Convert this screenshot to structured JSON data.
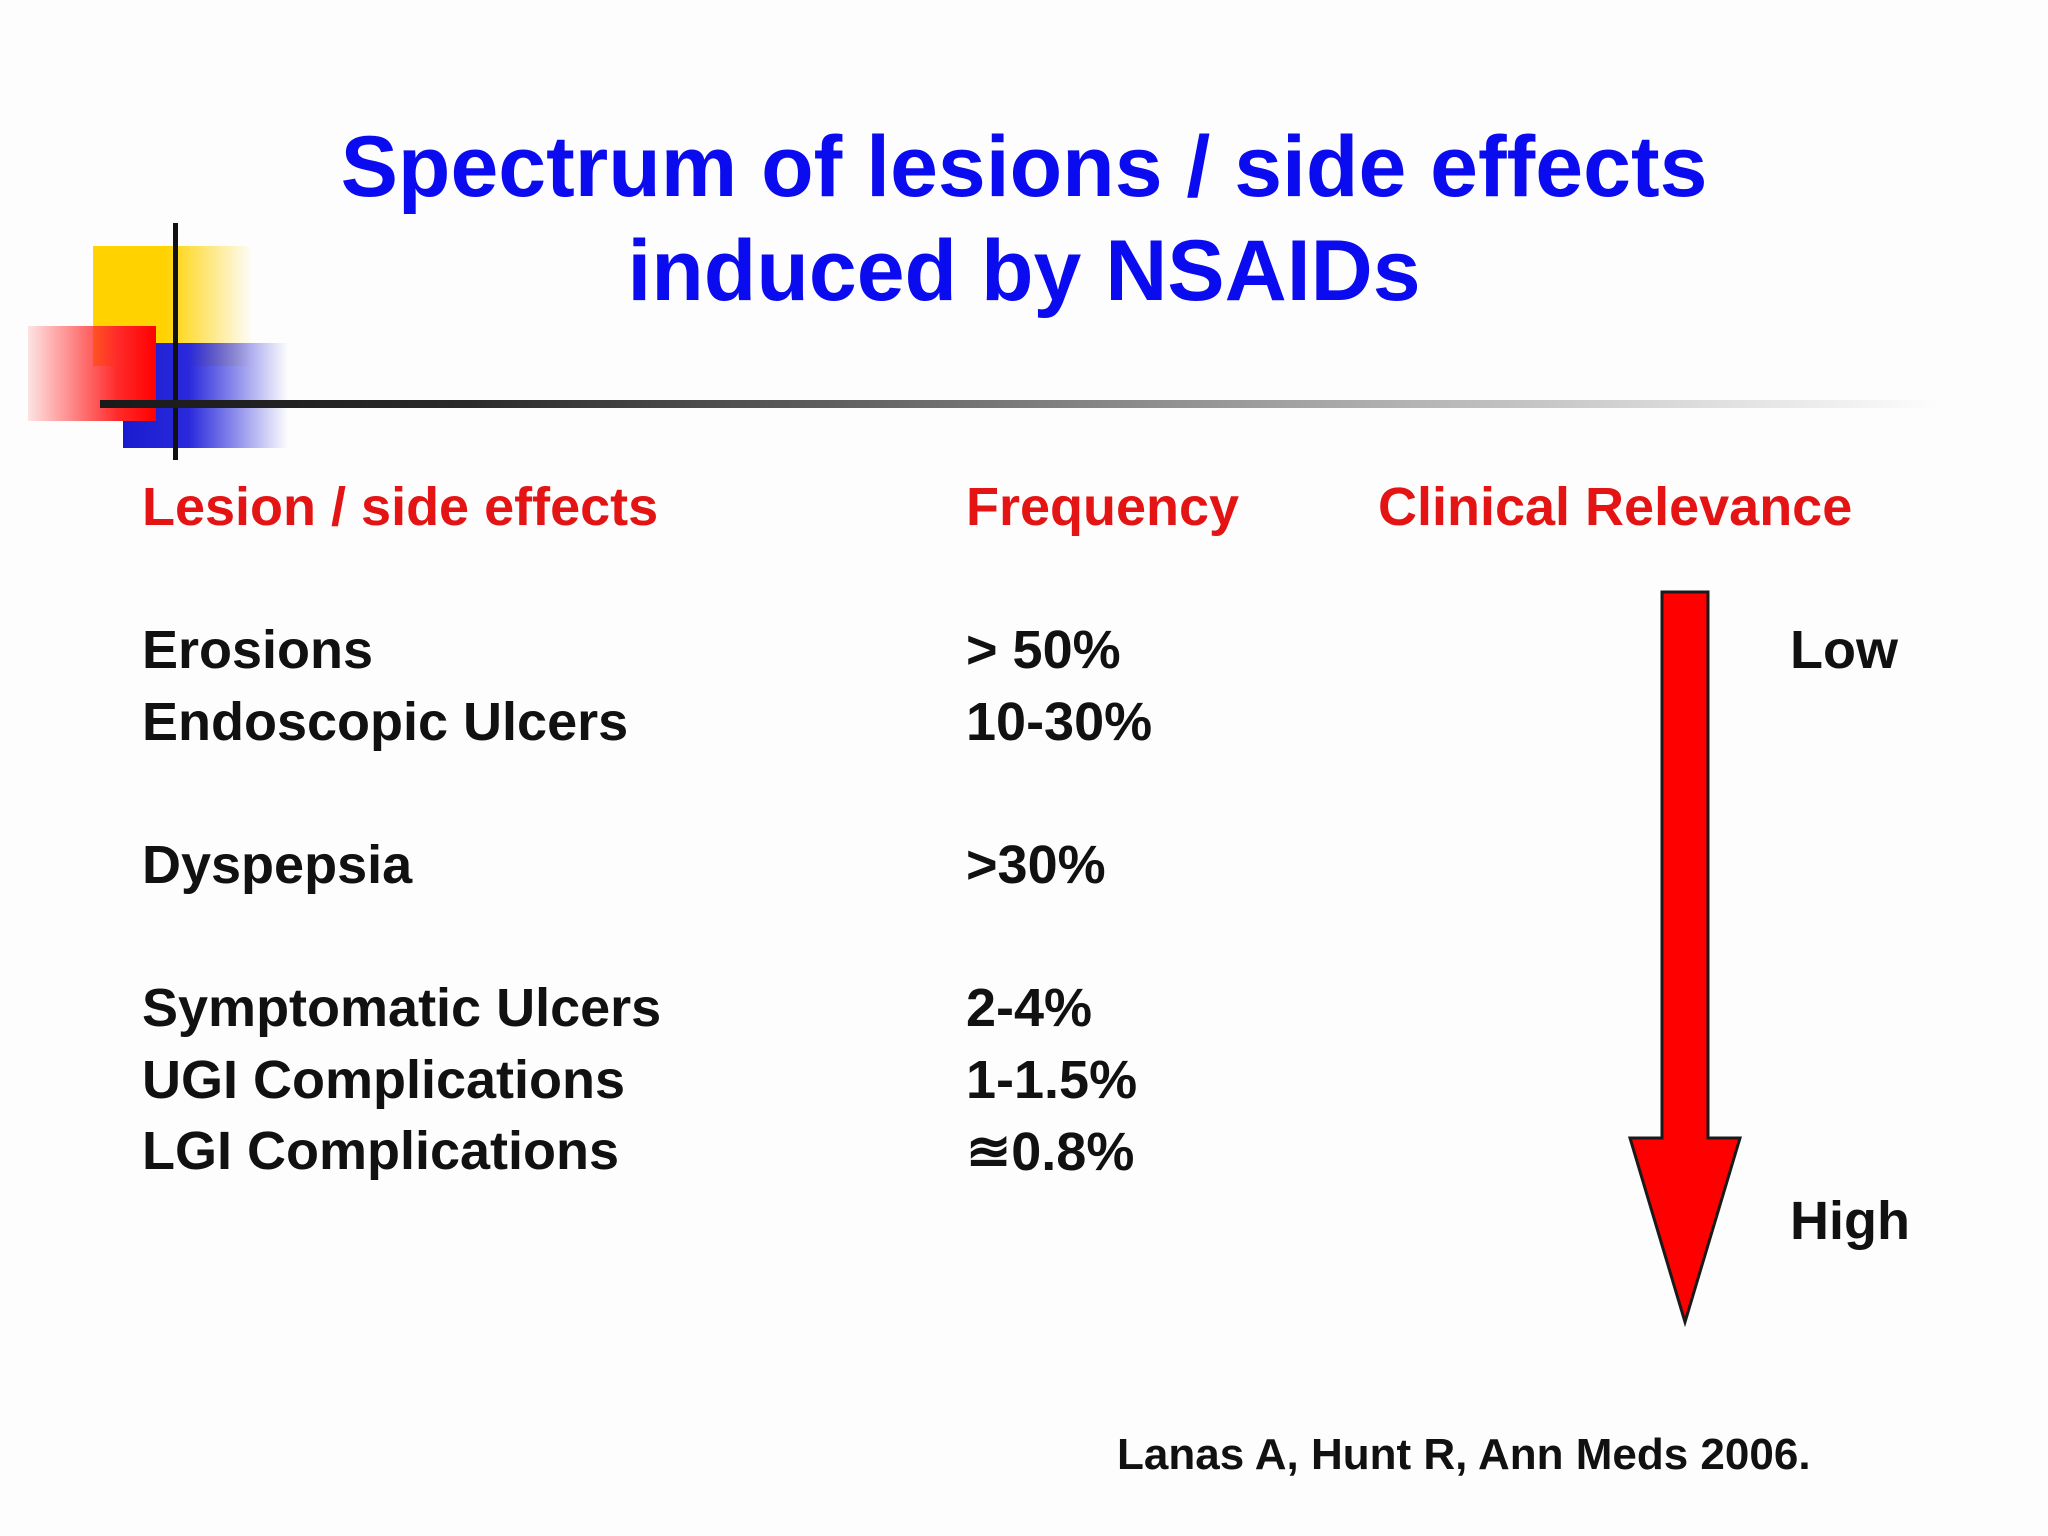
{
  "slide": {
    "title_line1": "Spectrum of lesions / side effects",
    "title_line2": "induced by NSAIDs",
    "headers": {
      "lesion": "Lesion / side effects",
      "frequency": "Frequency",
      "clinical_relevance": "Clinical Relevance"
    },
    "rows": [
      {
        "lesion": "Erosions",
        "frequency": "> 50%"
      },
      {
        "lesion": "Endoscopic Ulcers",
        "frequency": "10-30%"
      },
      {
        "lesion": "Dyspepsia",
        "frequency": ">30%"
      },
      {
        "lesion": "Symptomatic Ulcers",
        "frequency": "2-4%"
      },
      {
        "lesion": "UGI Complications",
        "frequency": "1-1.5%"
      },
      {
        "lesion": "LGI Complications",
        "frequency": "≊0.8%"
      }
    ],
    "relevance_low": "Low",
    "relevance_high": "High",
    "citation": "Lanas A, Hunt R, Ann Meds 2006."
  },
  "colors": {
    "title": "#0b0bf0",
    "header": "#e41414",
    "arrow": "#ff0000",
    "deco_yellow": "#ffd200",
    "deco_blue": "#1a1ad0",
    "deco_red": "#ff0000"
  }
}
